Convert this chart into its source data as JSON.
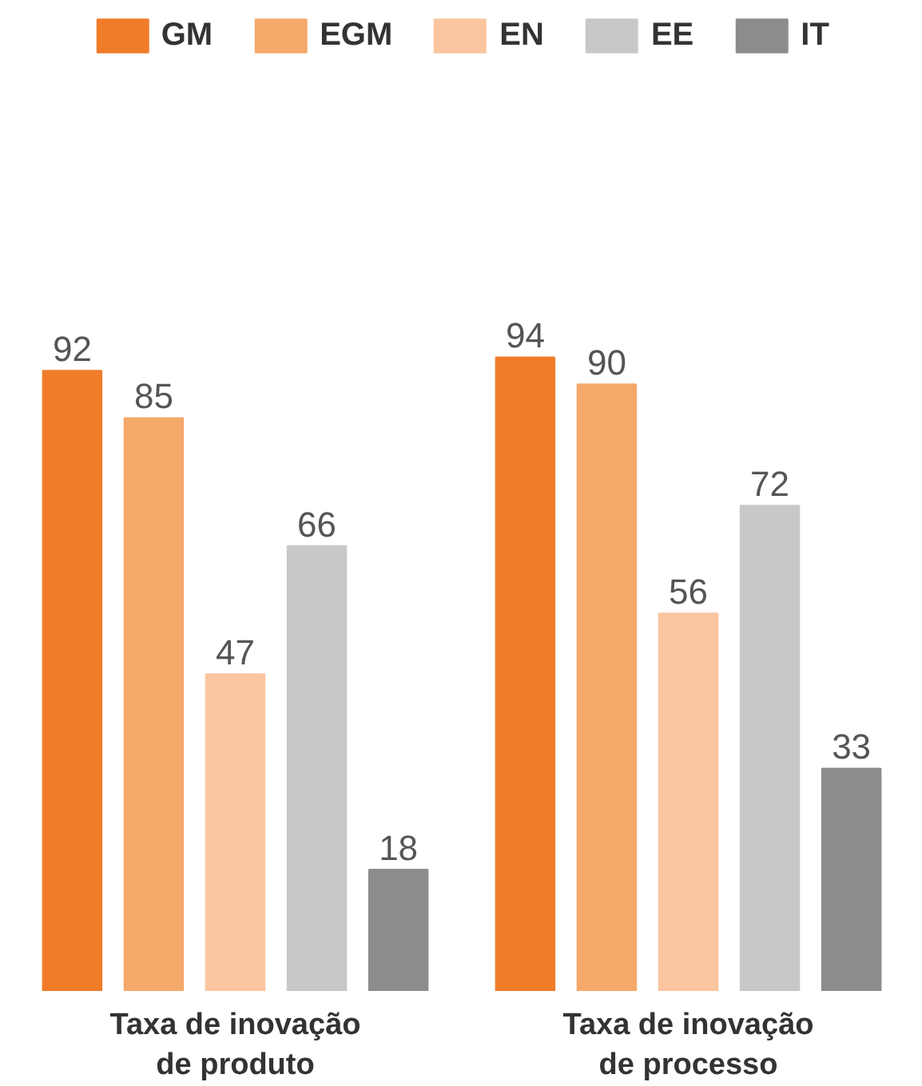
{
  "chart_data": {
    "type": "bar",
    "categories": [
      "Taxa de inovação de produto",
      "Taxa de inovação de processo"
    ],
    "series": [
      {
        "name": "GM",
        "color": "#f07c2a",
        "values": [
          92,
          94
        ]
      },
      {
        "name": "EGM",
        "color": "#f5a96b",
        "values": [
          85,
          90
        ]
      },
      {
        "name": "EN",
        "color": "#fbc5a0",
        "values": [
          47,
          56
        ]
      },
      {
        "name": "EE",
        "color": "#c8c8c8",
        "values": [
          66,
          72
        ]
      },
      {
        "name": "IT",
        "color": "#8c8c8c",
        "values": [
          18,
          33
        ]
      }
    ],
    "data_labels": true,
    "legend": "top",
    "grid": false
  }
}
